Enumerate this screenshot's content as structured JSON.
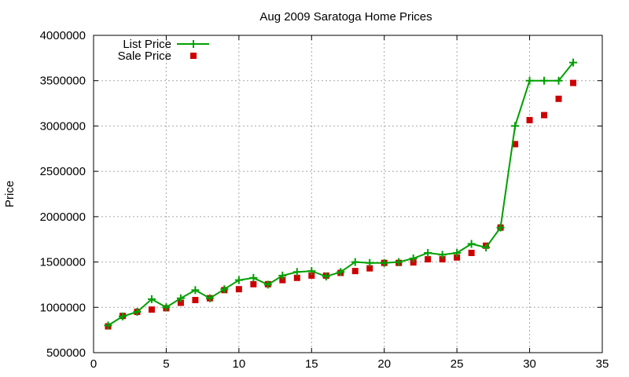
{
  "chart_data": {
    "type": "line",
    "title": "Aug 2009 Saratoga Home Prices",
    "xlabel": "",
    "ylabel": "Price",
    "xlim": [
      0,
      35
    ],
    "ylim": [
      500000,
      4000000
    ],
    "xticks": [
      0,
      5,
      10,
      15,
      20,
      25,
      30,
      35
    ],
    "yticks": [
      500000,
      1000000,
      1500000,
      2000000,
      2500000,
      3000000,
      3500000,
      4000000
    ],
    "grid": true,
    "legend_position": "top-left",
    "x": [
      1,
      2,
      3,
      4,
      5,
      6,
      7,
      8,
      9,
      10,
      11,
      12,
      13,
      14,
      15,
      16,
      17,
      18,
      19,
      20,
      21,
      22,
      23,
      24,
      25,
      26,
      27,
      28,
      29,
      30,
      31,
      32,
      33
    ],
    "series": [
      {
        "name": "List Price",
        "style": "line-plus",
        "color": "#00a000",
        "values": [
          800000,
          900000,
          950000,
          1090000,
          1000000,
          1100000,
          1190000,
          1100000,
          1200000,
          1300000,
          1325000,
          1250000,
          1350000,
          1390000,
          1400000,
          1340000,
          1390000,
          1500000,
          1490000,
          1490000,
          1500000,
          1540000,
          1600000,
          1580000,
          1600000,
          1700000,
          1660000,
          1880000,
          3000000,
          3500000,
          3500000,
          3500000,
          3700000
        ]
      },
      {
        "name": "Sale Price",
        "style": "square-markers",
        "color": "#cc0000",
        "values": [
          790000,
          905000,
          950000,
          975000,
          990000,
          1050000,
          1080000,
          1100000,
          1190000,
          1200000,
          1255000,
          1255000,
          1300000,
          1325000,
          1350000,
          1350000,
          1380000,
          1400000,
          1430000,
          1490000,
          1490000,
          1495000,
          1530000,
          1530000,
          1550000,
          1600000,
          1680000,
          1880000,
          2800000,
          3065000,
          3120000,
          3300000,
          3475000
        ]
      }
    ]
  }
}
